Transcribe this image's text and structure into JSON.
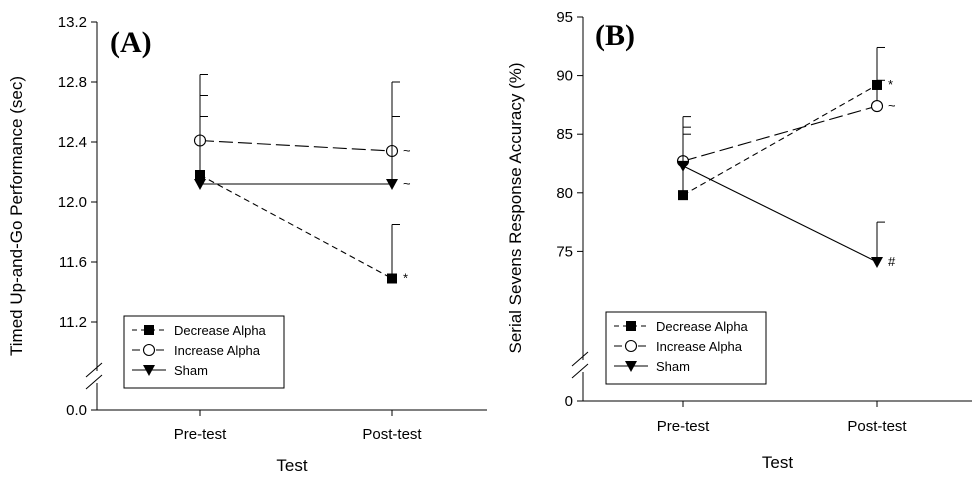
{
  "chart_data": [
    {
      "type": "line",
      "panel_label": "(A)",
      "xlabel": "Test",
      "ylabel": "Timed Up-and-Go Performance (sec)",
      "categories": [
        "Pre-test",
        "Post-test"
      ],
      "ylim": [
        11.2,
        13.2
      ],
      "yticks": [
        "13.2",
        "12.8",
        "12.4",
        "12.0",
        "11.6",
        "11.2"
      ],
      "axis_break": true,
      "break_tick": "0.0",
      "grid": false,
      "legend_position": "bottom-left",
      "series": [
        {
          "name": "Decrease Alpha",
          "marker": "filled-square",
          "line": "short-dash",
          "values": [
            12.18,
            11.49
          ],
          "error_upper": [
            12.71,
            11.85
          ],
          "annotations": [
            "",
            "*"
          ]
        },
        {
          "name": "Increase Alpha",
          "marker": "open-circle",
          "line": "long-dash",
          "values": [
            12.41,
            12.34
          ],
          "error_upper": [
            12.85,
            12.8
          ],
          "annotations": [
            "",
            "~"
          ]
        },
        {
          "name": "Sham",
          "marker": "filled-triangle-down",
          "line": "solid",
          "values": [
            12.12,
            12.12
          ],
          "error_upper": [
            12.57,
            12.57
          ],
          "annotations": [
            "",
            "~"
          ]
        }
      ]
    },
    {
      "type": "line",
      "panel_label": "(B)",
      "xlabel": "Test",
      "ylabel": "Serial Sevens Response Accuracy (%)",
      "categories": [
        "Pre-test",
        "Post-test"
      ],
      "ylim": [
        70,
        95
      ],
      "yticks": [
        "95",
        "90",
        "85",
        "80",
        "75"
      ],
      "axis_break": true,
      "break_tick": "0",
      "grid": false,
      "legend_position": "bottom-left",
      "series": [
        {
          "name": "Decrease Alpha",
          "marker": "filled-square",
          "line": "short-dash",
          "values": [
            79.8,
            89.2
          ],
          "error_upper": [
            85.6,
            92.4
          ],
          "annotations": [
            "",
            "*"
          ]
        },
        {
          "name": "Increase Alpha",
          "marker": "open-circle",
          "line": "long-dash",
          "values": [
            82.7,
            87.4
          ],
          "error_upper": [
            86.5,
            89.6
          ],
          "annotations": [
            "",
            "~"
          ]
        },
        {
          "name": "Sham",
          "marker": "filled-triangle-down",
          "line": "solid",
          "values": [
            82.3,
            74.1
          ],
          "error_upper": [
            85.0,
            77.5
          ],
          "annotations": [
            "",
            "#"
          ]
        }
      ]
    }
  ]
}
